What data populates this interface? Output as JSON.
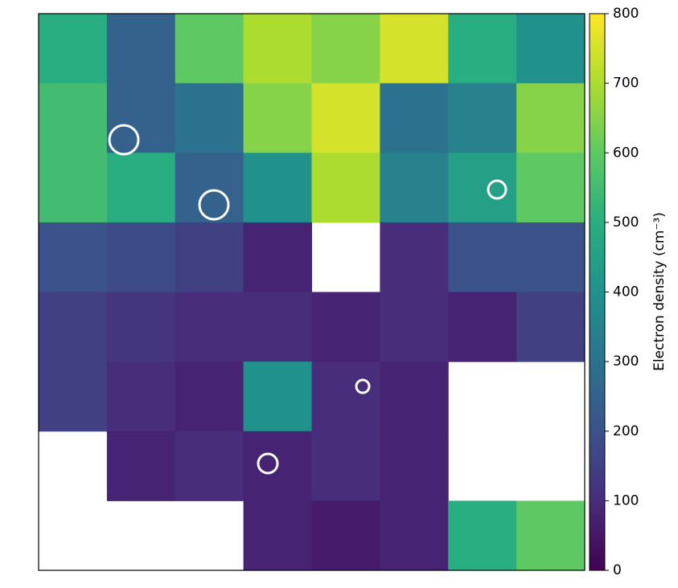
{
  "chart_data": {
    "type": "heatmap",
    "colormap": "viridis",
    "values": [
      [
        500,
        250,
        600,
        700,
        650,
        750,
        500,
        400
      ],
      [
        550,
        250,
        300,
        650,
        750,
        300,
        350,
        650
      ],
      [
        550,
        500,
        250,
        400,
        700,
        350,
        450,
        600
      ],
      [
        200,
        180,
        150,
        80,
        null,
        100,
        200,
        200
      ],
      [
        150,
        120,
        100,
        100,
        80,
        100,
        80,
        150
      ],
      [
        150,
        100,
        80,
        400,
        100,
        80,
        null,
        null
      ],
      [
        null,
        80,
        100,
        80,
        100,
        80,
        null,
        null
      ],
      [
        null,
        null,
        null,
        80,
        60,
        80,
        500,
        600
      ]
    ],
    "clim": [
      0,
      800
    ],
    "cticks": [
      0,
      100,
      200,
      300,
      400,
      500,
      600,
      700,
      800
    ],
    "colorbar_label": "Electron density (cm⁻³)"
  }
}
